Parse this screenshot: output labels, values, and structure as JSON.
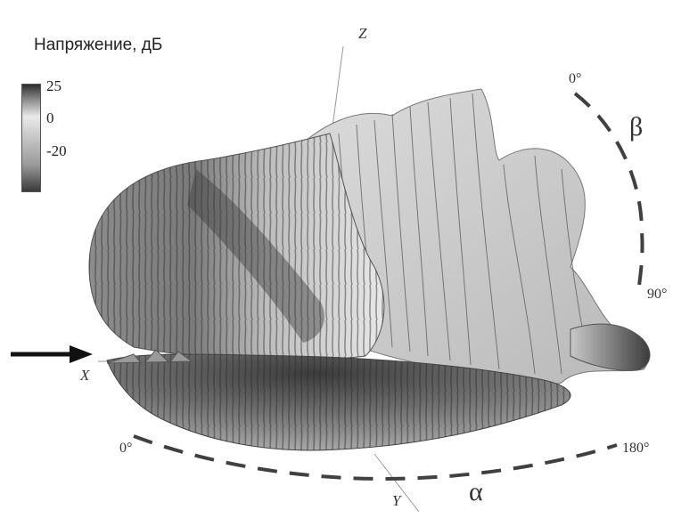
{
  "legend": {
    "title": "Напряжение, дБ",
    "ticks": [
      "25",
      "0",
      "-20"
    ]
  },
  "axes": {
    "x": "X",
    "y": "Y",
    "z": "Z"
  },
  "angles": {
    "beta_symbol": "β",
    "beta_start": "0°",
    "beta_end": "90°",
    "alpha_symbol": "α",
    "alpha_start": "0°",
    "alpha_end": "180°"
  },
  "colors": {
    "surface_light": "#e6e6e6",
    "surface_dark": "#3a3a3a",
    "dash": "#404040",
    "arrow": "#111111"
  }
}
